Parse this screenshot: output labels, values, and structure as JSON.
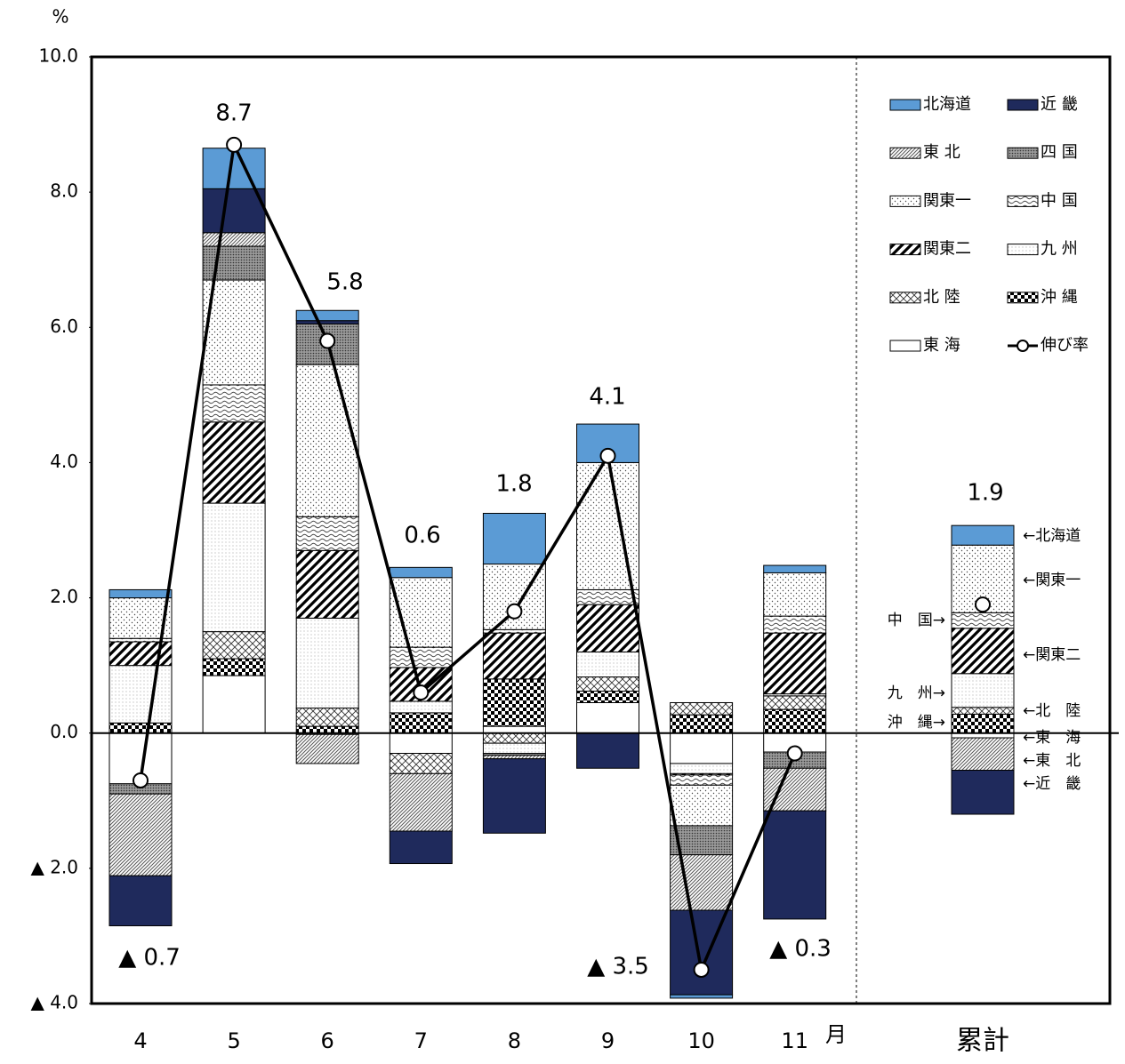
{
  "chart_data": {
    "type": "bar",
    "y_label": "%",
    "x_unit": "月",
    "categories": [
      "4",
      "5",
      "6",
      "7",
      "8",
      "9",
      "10",
      "11",
      "累計"
    ],
    "ylim": [
      -4,
      10
    ],
    "yticks": [
      {
        "value": 10,
        "label": "10.0"
      },
      {
        "value": 8,
        "label": "8.0"
      },
      {
        "value": 6,
        "label": "6.0"
      },
      {
        "value": 4,
        "label": "4.0"
      },
      {
        "value": 2,
        "label": "2.0"
      },
      {
        "value": 0,
        "label": "0.0"
      },
      {
        "value": -2,
        "label": "▲ 2.0"
      },
      {
        "value": -4,
        "label": "▲ 4.0"
      }
    ],
    "series": [
      {
        "name": "北海道",
        "color": "#5b9bd5",
        "pattern": "solid",
        "values": [
          0.12,
          0.6,
          0.15,
          0.15,
          0.75,
          0.57,
          -0.05,
          0.11,
          0.29
        ]
      },
      {
        "name": "東 北",
        "color": "#000000",
        "pattern": "diag-thin",
        "values": [
          -1.21,
          0.2,
          -0.43,
          -0.85,
          -0.05,
          0,
          -0.82,
          -0.63,
          -0.48
        ]
      },
      {
        "name": "関東一",
        "color": "#000000",
        "pattern": "dots",
        "values": [
          0.6,
          1.55,
          2.25,
          1.03,
          0.97,
          1.88,
          -0.6,
          0.64,
          1.0
        ]
      },
      {
        "name": "関東二",
        "color": "#000000",
        "pattern": "diag-thick",
        "values": [
          0.35,
          1.2,
          1.0,
          0.5,
          0.68,
          0.7,
          -0.02,
          0.9,
          0.67
        ]
      },
      {
        "name": "北 陸",
        "color": "#000000",
        "pattern": "crosshatch",
        "values": [
          0,
          0.4,
          0.27,
          -0.3,
          -0.15,
          0.21,
          0.18,
          0.2,
          0.1
        ]
      },
      {
        "name": "東 海",
        "color": "#000000",
        "pattern": "white",
        "values": [
          -0.75,
          0.85,
          -0.02,
          -0.3,
          0.1,
          0.45,
          -0.45,
          -0.28,
          -0.07
        ]
      },
      {
        "name": "近 畿",
        "color": "#1f2a5c",
        "pattern": "solid",
        "values": [
          -0.74,
          0.65,
          0.05,
          -0.48,
          -1.1,
          -0.52,
          -1.25,
          -1.6,
          -0.65
        ]
      },
      {
        "name": "四 国",
        "color": "#000000",
        "pattern": "dense",
        "values": [
          -0.15,
          0.5,
          0.6,
          0,
          -0.03,
          0,
          -0.43,
          -0.24,
          0
        ]
      },
      {
        "name": "中 国",
        "color": "#000000",
        "pattern": "wave",
        "values": [
          0.05,
          0.55,
          0.5,
          0.3,
          0.05,
          0.22,
          -0.15,
          0.25,
          0.23
        ]
      },
      {
        "name": "九 州",
        "color": "#000000",
        "pattern": "grid",
        "values": [
          0.85,
          1.9,
          1.33,
          0.17,
          -0.15,
          0.37,
          -0.15,
          0.03,
          0.5
        ]
      },
      {
        "name": "沖 縄",
        "color": "#000000",
        "pattern": "checker",
        "values": [
          0.15,
          0.25,
          0.1,
          0.3,
          0.7,
          0.17,
          0.27,
          0.35,
          0.28
        ]
      },
      {
        "name": "伸び率",
        "color": "#000000",
        "pattern": "line",
        "values": [
          -0.7,
          8.7,
          5.8,
          0.6,
          1.8,
          4.1,
          -3.5,
          -0.3,
          1.9
        ],
        "value_labels": [
          "▲ 0.7",
          "8.7",
          "5.8",
          "0.6",
          "1.8",
          "4.1",
          "▲ 3.5",
          "▲ 0.3",
          "1.9"
        ]
      }
    ],
    "annotations": [
      "←北海道",
      "←関東一",
      "中　国→",
      "←関東二",
      "九　州→",
      "←北　陸",
      "沖　縄→",
      "←東　海",
      "←東　北",
      "←近　畿"
    ]
  }
}
